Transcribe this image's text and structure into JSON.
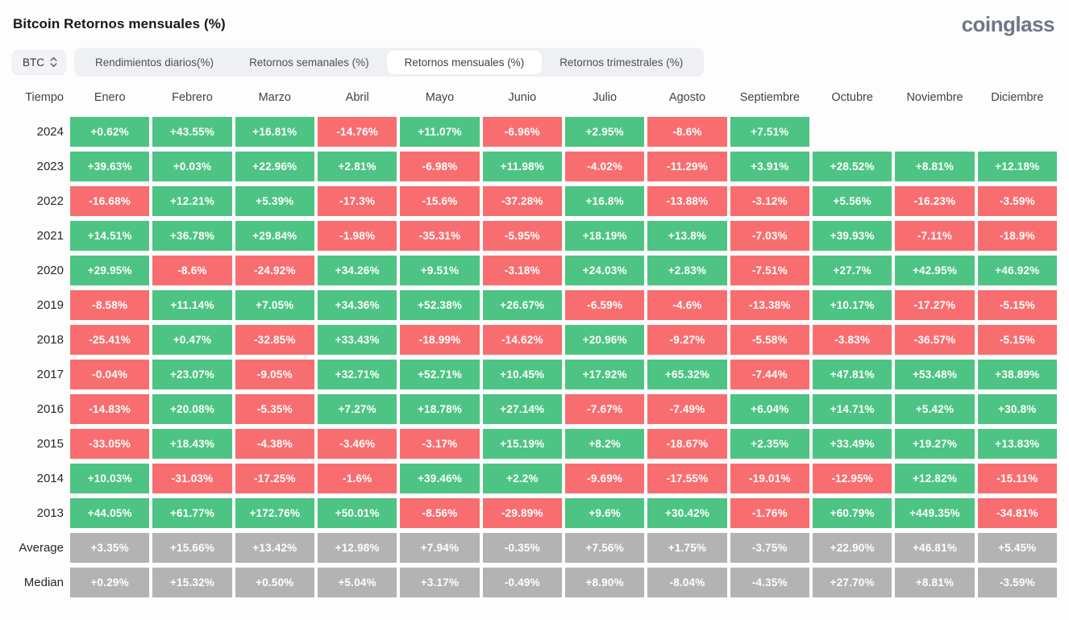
{
  "header": {
    "title": "Bitcoin Retornos mensuales (%)",
    "logo": "coinglass"
  },
  "controls": {
    "symbol_select": {
      "value": "BTC"
    },
    "tabs": [
      {
        "label": "Rendimientos diarios(%)",
        "active": false
      },
      {
        "label": "Retornos semanales (%)",
        "active": false
      },
      {
        "label": "Retornos mensuales (%)",
        "active": true
      },
      {
        "label": "Retornos trimestrales (%)",
        "active": false
      }
    ]
  },
  "colors": {
    "g": "#4DC483",
    "r": "#F86E70",
    "n": "#B3B3B3"
  },
  "table": {
    "time_header": "Tiempo",
    "months": [
      "Enero",
      "Febrero",
      "Marzo",
      "Abril",
      "Mayo",
      "Junio",
      "Julio",
      "Agosto",
      "Septiembre",
      "Octubre",
      "Noviembre",
      "Diciembre"
    ],
    "rows": [
      {
        "label": "2024",
        "cells": [
          {
            "v": "+0.62%",
            "c": "g"
          },
          {
            "v": "+43.55%",
            "c": "g"
          },
          {
            "v": "+16.81%",
            "c": "g"
          },
          {
            "v": "-14.76%",
            "c": "r"
          },
          {
            "v": "+11.07%",
            "c": "g"
          },
          {
            "v": "-6.96%",
            "c": "r"
          },
          {
            "v": "+2.95%",
            "c": "g"
          },
          {
            "v": "-8.6%",
            "c": "r"
          },
          {
            "v": "+7.51%",
            "c": "g"
          },
          null,
          null,
          null
        ]
      },
      {
        "label": "2023",
        "cells": [
          {
            "v": "+39.63%",
            "c": "g"
          },
          {
            "v": "+0.03%",
            "c": "g"
          },
          {
            "v": "+22.96%",
            "c": "g"
          },
          {
            "v": "+2.81%",
            "c": "g"
          },
          {
            "v": "-6.98%",
            "c": "r"
          },
          {
            "v": "+11.98%",
            "c": "g"
          },
          {
            "v": "-4.02%",
            "c": "r"
          },
          {
            "v": "-11.29%",
            "c": "r"
          },
          {
            "v": "+3.91%",
            "c": "g"
          },
          {
            "v": "+28.52%",
            "c": "g"
          },
          {
            "v": "+8.81%",
            "c": "g"
          },
          {
            "v": "+12.18%",
            "c": "g"
          }
        ]
      },
      {
        "label": "2022",
        "cells": [
          {
            "v": "-16.68%",
            "c": "r"
          },
          {
            "v": "+12.21%",
            "c": "g"
          },
          {
            "v": "+5.39%",
            "c": "g"
          },
          {
            "v": "-17.3%",
            "c": "r"
          },
          {
            "v": "-15.6%",
            "c": "r"
          },
          {
            "v": "-37.28%",
            "c": "r"
          },
          {
            "v": "+16.8%",
            "c": "g"
          },
          {
            "v": "-13.88%",
            "c": "r"
          },
          {
            "v": "-3.12%",
            "c": "r"
          },
          {
            "v": "+5.56%",
            "c": "g"
          },
          {
            "v": "-16.23%",
            "c": "r"
          },
          {
            "v": "-3.59%",
            "c": "r"
          }
        ]
      },
      {
        "label": "2021",
        "cells": [
          {
            "v": "+14.51%",
            "c": "g"
          },
          {
            "v": "+36.78%",
            "c": "g"
          },
          {
            "v": "+29.84%",
            "c": "g"
          },
          {
            "v": "-1.98%",
            "c": "r"
          },
          {
            "v": "-35.31%",
            "c": "r"
          },
          {
            "v": "-5.95%",
            "c": "r"
          },
          {
            "v": "+18.19%",
            "c": "g"
          },
          {
            "v": "+13.8%",
            "c": "g"
          },
          {
            "v": "-7.03%",
            "c": "r"
          },
          {
            "v": "+39.93%",
            "c": "g"
          },
          {
            "v": "-7.11%",
            "c": "r"
          },
          {
            "v": "-18.9%",
            "c": "r"
          }
        ]
      },
      {
        "label": "2020",
        "cells": [
          {
            "v": "+29.95%",
            "c": "g"
          },
          {
            "v": "-8.6%",
            "c": "r"
          },
          {
            "v": "-24.92%",
            "c": "r"
          },
          {
            "v": "+34.26%",
            "c": "g"
          },
          {
            "v": "+9.51%",
            "c": "g"
          },
          {
            "v": "-3.18%",
            "c": "r"
          },
          {
            "v": "+24.03%",
            "c": "g"
          },
          {
            "v": "+2.83%",
            "c": "g"
          },
          {
            "v": "-7.51%",
            "c": "r"
          },
          {
            "v": "+27.7%",
            "c": "g"
          },
          {
            "v": "+42.95%",
            "c": "g"
          },
          {
            "v": "+46.92%",
            "c": "g"
          }
        ]
      },
      {
        "label": "2019",
        "cells": [
          {
            "v": "-8.58%",
            "c": "r"
          },
          {
            "v": "+11.14%",
            "c": "g"
          },
          {
            "v": "+7.05%",
            "c": "g"
          },
          {
            "v": "+34.36%",
            "c": "g"
          },
          {
            "v": "+52.38%",
            "c": "g"
          },
          {
            "v": "+26.67%",
            "c": "g"
          },
          {
            "v": "-6.59%",
            "c": "r"
          },
          {
            "v": "-4.6%",
            "c": "r"
          },
          {
            "v": "-13.38%",
            "c": "r"
          },
          {
            "v": "+10.17%",
            "c": "g"
          },
          {
            "v": "-17.27%",
            "c": "r"
          },
          {
            "v": "-5.15%",
            "c": "r"
          }
        ]
      },
      {
        "label": "2018",
        "cells": [
          {
            "v": "-25.41%",
            "c": "r"
          },
          {
            "v": "+0.47%",
            "c": "g"
          },
          {
            "v": "-32.85%",
            "c": "r"
          },
          {
            "v": "+33.43%",
            "c": "g"
          },
          {
            "v": "-18.99%",
            "c": "r"
          },
          {
            "v": "-14.62%",
            "c": "r"
          },
          {
            "v": "+20.96%",
            "c": "g"
          },
          {
            "v": "-9.27%",
            "c": "r"
          },
          {
            "v": "-5.58%",
            "c": "r"
          },
          {
            "v": "-3.83%",
            "c": "r"
          },
          {
            "v": "-36.57%",
            "c": "r"
          },
          {
            "v": "-5.15%",
            "c": "r"
          }
        ]
      },
      {
        "label": "2017",
        "cells": [
          {
            "v": "-0.04%",
            "c": "r"
          },
          {
            "v": "+23.07%",
            "c": "g"
          },
          {
            "v": "-9.05%",
            "c": "r"
          },
          {
            "v": "+32.71%",
            "c": "g"
          },
          {
            "v": "+52.71%",
            "c": "g"
          },
          {
            "v": "+10.45%",
            "c": "g"
          },
          {
            "v": "+17.92%",
            "c": "g"
          },
          {
            "v": "+65.32%",
            "c": "g"
          },
          {
            "v": "-7.44%",
            "c": "r"
          },
          {
            "v": "+47.81%",
            "c": "g"
          },
          {
            "v": "+53.48%",
            "c": "g"
          },
          {
            "v": "+38.89%",
            "c": "g"
          }
        ]
      },
      {
        "label": "2016",
        "cells": [
          {
            "v": "-14.83%",
            "c": "r"
          },
          {
            "v": "+20.08%",
            "c": "g"
          },
          {
            "v": "-5.35%",
            "c": "r"
          },
          {
            "v": "+7.27%",
            "c": "g"
          },
          {
            "v": "+18.78%",
            "c": "g"
          },
          {
            "v": "+27.14%",
            "c": "g"
          },
          {
            "v": "-7.67%",
            "c": "r"
          },
          {
            "v": "-7.49%",
            "c": "r"
          },
          {
            "v": "+6.04%",
            "c": "g"
          },
          {
            "v": "+14.71%",
            "c": "g"
          },
          {
            "v": "+5.42%",
            "c": "g"
          },
          {
            "v": "+30.8%",
            "c": "g"
          }
        ]
      },
      {
        "label": "2015",
        "cells": [
          {
            "v": "-33.05%",
            "c": "r"
          },
          {
            "v": "+18.43%",
            "c": "g"
          },
          {
            "v": "-4.38%",
            "c": "r"
          },
          {
            "v": "-3.46%",
            "c": "r"
          },
          {
            "v": "-3.17%",
            "c": "r"
          },
          {
            "v": "+15.19%",
            "c": "g"
          },
          {
            "v": "+8.2%",
            "c": "g"
          },
          {
            "v": "-18.67%",
            "c": "r"
          },
          {
            "v": "+2.35%",
            "c": "g"
          },
          {
            "v": "+33.49%",
            "c": "g"
          },
          {
            "v": "+19.27%",
            "c": "g"
          },
          {
            "v": "+13.83%",
            "c": "g"
          }
        ]
      },
      {
        "label": "2014",
        "cells": [
          {
            "v": "+10.03%",
            "c": "g"
          },
          {
            "v": "-31.03%",
            "c": "r"
          },
          {
            "v": "-17.25%",
            "c": "r"
          },
          {
            "v": "-1.6%",
            "c": "r"
          },
          {
            "v": "+39.46%",
            "c": "g"
          },
          {
            "v": "+2.2%",
            "c": "g"
          },
          {
            "v": "-9.69%",
            "c": "r"
          },
          {
            "v": "-17.55%",
            "c": "r"
          },
          {
            "v": "-19.01%",
            "c": "r"
          },
          {
            "v": "-12.95%",
            "c": "r"
          },
          {
            "v": "+12.82%",
            "c": "g"
          },
          {
            "v": "-15.11%",
            "c": "r"
          }
        ]
      },
      {
        "label": "2013",
        "cells": [
          {
            "v": "+44.05%",
            "c": "g"
          },
          {
            "v": "+61.77%",
            "c": "g"
          },
          {
            "v": "+172.76%",
            "c": "g"
          },
          {
            "v": "+50.01%",
            "c": "g"
          },
          {
            "v": "-8.56%",
            "c": "r"
          },
          {
            "v": "-29.89%",
            "c": "r"
          },
          {
            "v": "+9.6%",
            "c": "g"
          },
          {
            "v": "+30.42%",
            "c": "g"
          },
          {
            "v": "-1.76%",
            "c": "r"
          },
          {
            "v": "+60.79%",
            "c": "g"
          },
          {
            "v": "+449.35%",
            "c": "g"
          },
          {
            "v": "-34.81%",
            "c": "r"
          }
        ]
      },
      {
        "label": "Average",
        "cells": [
          {
            "v": "+3.35%",
            "c": "n"
          },
          {
            "v": "+15.66%",
            "c": "n"
          },
          {
            "v": "+13.42%",
            "c": "n"
          },
          {
            "v": "+12.98%",
            "c": "n"
          },
          {
            "v": "+7.94%",
            "c": "n"
          },
          {
            "v": "-0.35%",
            "c": "n"
          },
          {
            "v": "+7.56%",
            "c": "n"
          },
          {
            "v": "+1.75%",
            "c": "n"
          },
          {
            "v": "-3.75%",
            "c": "n"
          },
          {
            "v": "+22.90%",
            "c": "n"
          },
          {
            "v": "+46.81%",
            "c": "n"
          },
          {
            "v": "+5.45%",
            "c": "n"
          }
        ]
      },
      {
        "label": "Median",
        "cells": [
          {
            "v": "+0.29%",
            "c": "n"
          },
          {
            "v": "+15.32%",
            "c": "n"
          },
          {
            "v": "+0.50%",
            "c": "n"
          },
          {
            "v": "+5.04%",
            "c": "n"
          },
          {
            "v": "+3.17%",
            "c": "n"
          },
          {
            "v": "-0.49%",
            "c": "n"
          },
          {
            "v": "+8.90%",
            "c": "n"
          },
          {
            "v": "-8.04%",
            "c": "n"
          },
          {
            "v": "-4.35%",
            "c": "n"
          },
          {
            "v": "+27.70%",
            "c": "n"
          },
          {
            "v": "+8.81%",
            "c": "n"
          },
          {
            "v": "-3.59%",
            "c": "n"
          }
        ]
      }
    ]
  }
}
